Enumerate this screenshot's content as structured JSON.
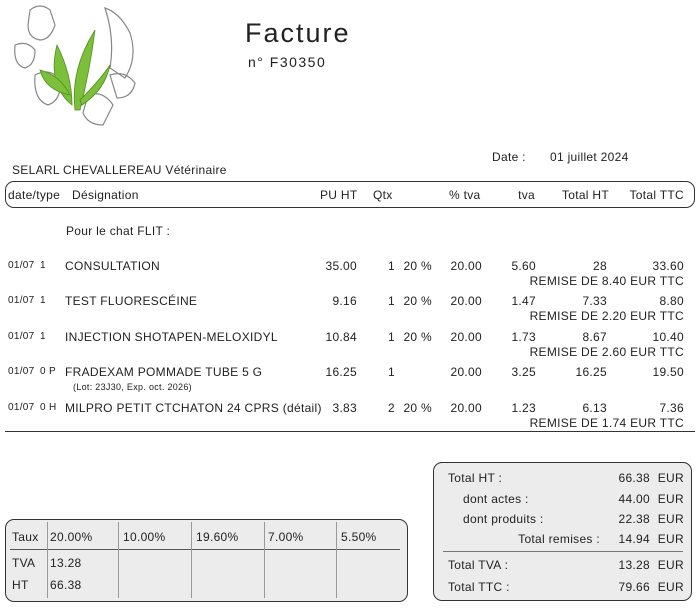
{
  "header": {
    "title": "Facture",
    "number": "n° F30350",
    "date_label": "Date :",
    "date": "01 juillet 2024",
    "clinic": "SELARL CHEVALLEREAU Vétérinaire"
  },
  "table": {
    "columns": [
      "date/type",
      "Désignation",
      "PU HT",
      "Qtx",
      "% tva",
      "tva",
      "Total HT",
      "Total TTC"
    ],
    "section": "Pour le chat FLIT :",
    "rows": [
      {
        "date": "01/07",
        "type": "1",
        "designation": "CONSULTATION",
        "pu_ht": "35.00",
        "qty": "1",
        "rate": "20 %",
        "pct_tva": "20.00",
        "tva": "5.60",
        "total_ht": "28",
        "total_ttc": "33.60",
        "remise": "REMISE DE 8.40 EUR TTC"
      },
      {
        "date": "01/07",
        "type": "1",
        "designation": "TEST FLUORESCÉINE",
        "pu_ht": "9.16",
        "qty": "1",
        "rate": "20 %",
        "pct_tva": "20.00",
        "tva": "1.47",
        "total_ht": "7.33",
        "total_ttc": "8.80",
        "remise": "REMISE DE 2.20 EUR TTC"
      },
      {
        "date": "01/07",
        "type": "1",
        "designation": "INJECTION SHOTAPEN-MELOXIDYL",
        "pu_ht": "10.84",
        "qty": "1",
        "rate": "20 %",
        "pct_tva": "20.00",
        "tva": "1.73",
        "total_ht": "8.67",
        "total_ttc": "10.40",
        "remise": "REMISE DE 2.60 EUR TTC"
      },
      {
        "date": "01/07",
        "type": "0 P",
        "designation": "FRADEXAM POMMADE TUBE 5 G",
        "lot": "(Lot: 23J30, Exp. oct. 2026)",
        "pu_ht": "16.25",
        "qty": "1",
        "pct_tva": "20.00",
        "tva": "3.25",
        "total_ht": "16.25",
        "total_ttc": "19.50"
      },
      {
        "date": "01/07",
        "type": "0 H",
        "designation": "MILPRO PETIT CTCHATON 24 CPRS (détail)",
        "pu_ht": "3.83",
        "qty": "2",
        "rate": "20 %",
        "pct_tva": "20.00",
        "tva": "1.23",
        "total_ht": "6.13",
        "total_ttc": "7.36",
        "remise": "REMISE DE 1.74 EUR TTC"
      }
    ]
  },
  "totals": [
    {
      "label": "Total HT :",
      "value": "66.38",
      "currency": "EUR"
    },
    {
      "label": "dont actes :",
      "value": "44.00",
      "currency": "EUR"
    },
    {
      "label": "dont produits :",
      "value": "22.38",
      "currency": "EUR"
    },
    {
      "label": "Total remises :",
      "value": "14.94",
      "currency": "EUR"
    },
    {
      "label": "Total TVA :",
      "value": "13.28",
      "currency": "EUR"
    },
    {
      "label": "Total TTC :",
      "value": "79.66",
      "currency": "EUR"
    }
  ],
  "vat_table": {
    "headers": [
      "Taux",
      "20.00%",
      "10.00%",
      "19.60%",
      "7.00%",
      "5.50%"
    ],
    "rows": [
      [
        "TVA",
        "13.28"
      ],
      [
        "HT",
        "66.38"
      ]
    ]
  }
}
